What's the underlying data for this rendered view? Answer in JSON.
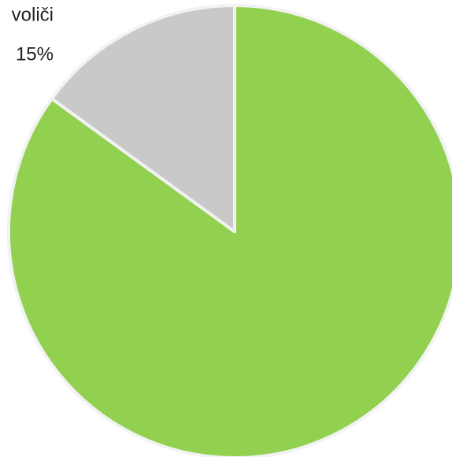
{
  "chart_data": {
    "type": "pie",
    "categories": [
      null,
      "voliči"
    ],
    "values": [
      85,
      15
    ],
    "value_labels": [
      null,
      "15%"
    ],
    "colors": [
      "#92d050",
      "#c9c9c9"
    ],
    "start_angle": 0,
    "direction": "clockwise"
  }
}
